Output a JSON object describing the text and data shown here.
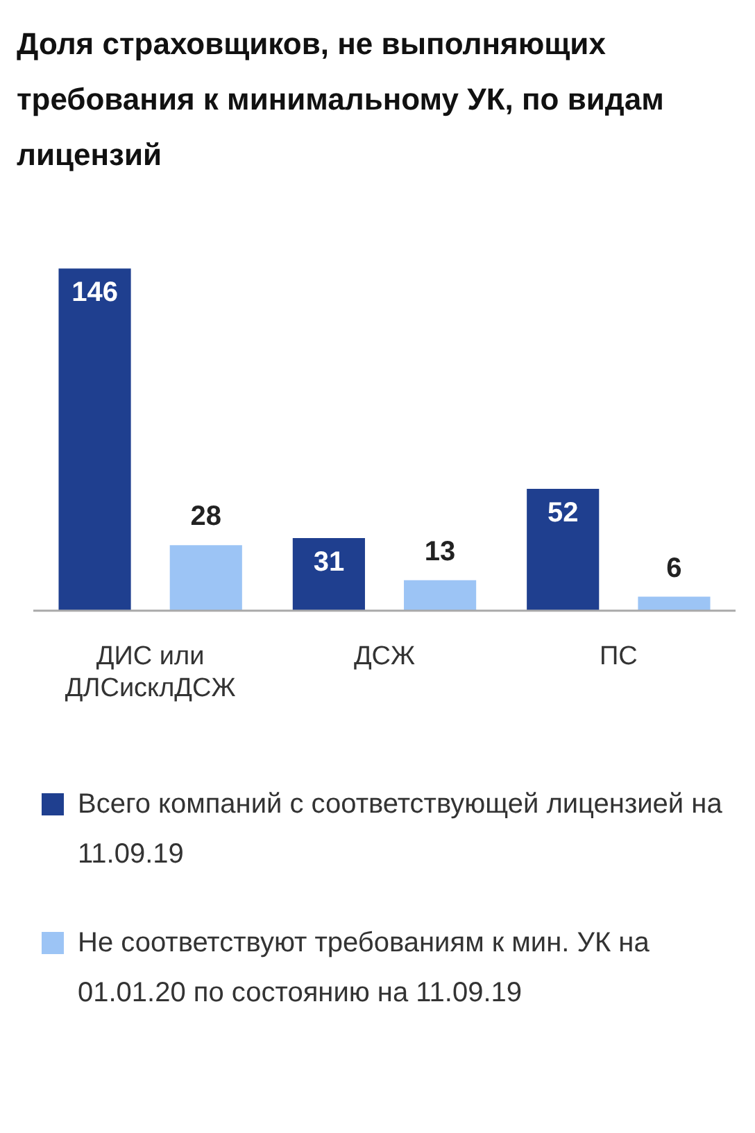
{
  "chart_data": {
    "type": "bar",
    "title": "Доля страховщиков, не выполняющих требования к минимальному УК, по видам лицензий",
    "categories": [
      "ДИС или ДЛСисклДСЖ",
      "ДСЖ",
      "ПС"
    ],
    "series": [
      {
        "name": "Всего компаний с соответствующей лицензией на 11.09.19",
        "color": "#1f3f8f",
        "values": [
          146,
          31,
          52
        ]
      },
      {
        "name": "Не соответствуют требованиям к мин. УК на 01.01.20 по состоянию на 11.09.19",
        "color": "#9cc4f5",
        "values": [
          28,
          13,
          6
        ]
      }
    ],
    "data_labels": true,
    "legend": "bottom",
    "tick_labels": "x",
    "grid": false
  }
}
